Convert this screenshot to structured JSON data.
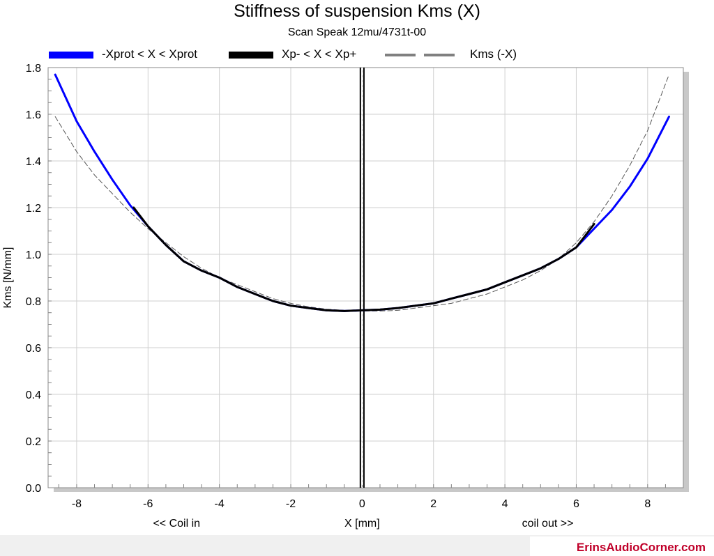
{
  "chart_data": {
    "type": "line",
    "title": "Stiffness of suspension Kms (X)",
    "subtitle": "Scan Speak 12mu/4731t-00",
    "xlabel": "X [mm]",
    "xlabel_left": "<< Coil in",
    "xlabel_right": "coil out >>",
    "ylabel": "Kms [N/mm]",
    "xlim": [
      -8.8,
      9.0
    ],
    "ylim": [
      0.0,
      1.8
    ],
    "xticks": [
      -8,
      -6,
      -4,
      -2,
      0,
      2,
      4,
      6,
      8
    ],
    "yticks": [
      0.0,
      0.2,
      0.4,
      0.6,
      0.8,
      1.0,
      1.2,
      1.4,
      1.6,
      1.8
    ],
    "grid": true,
    "legend_position": "top",
    "series": [
      {
        "name": "-Xprot < X < Xprot",
        "color": "#0000ff",
        "style": "solid",
        "x": [
          -8.6,
          -8.0,
          -7.5,
          -7.0,
          -6.5,
          -6.0,
          -5.5,
          -5.0,
          -4.5,
          -4.0,
          -3.5,
          -3.0,
          -2.5,
          -2.0,
          -1.5,
          -1.0,
          -0.5,
          0.0,
          0.5,
          1.0,
          1.5,
          2.0,
          2.5,
          3.0,
          3.5,
          4.0,
          4.5,
          5.0,
          5.5,
          6.0,
          6.5,
          7.0,
          7.5,
          8.0,
          8.6
        ],
        "y": [
          1.77,
          1.57,
          1.44,
          1.32,
          1.21,
          1.12,
          1.04,
          0.97,
          0.93,
          0.9,
          0.86,
          0.83,
          0.8,
          0.78,
          0.77,
          0.76,
          0.757,
          0.76,
          0.763,
          0.77,
          0.78,
          0.79,
          0.81,
          0.83,
          0.85,
          0.88,
          0.91,
          0.94,
          0.98,
          1.03,
          1.11,
          1.19,
          1.29,
          1.41,
          1.59
        ]
      },
      {
        "name": "Xp- < X < Xp+",
        "color": "#000000",
        "style": "solid",
        "x": [
          -6.4,
          -6.0,
          -5.5,
          -5.0,
          -4.5,
          -4.0,
          -3.5,
          -3.0,
          -2.5,
          -2.0,
          -1.5,
          -1.0,
          -0.5,
          0.0,
          0.5,
          1.0,
          1.5,
          2.0,
          2.5,
          3.0,
          3.5,
          4.0,
          4.5,
          5.0,
          5.5,
          6.0,
          6.5
        ],
        "y": [
          1.2,
          1.12,
          1.04,
          0.97,
          0.93,
          0.9,
          0.86,
          0.83,
          0.8,
          0.78,
          0.77,
          0.76,
          0.757,
          0.76,
          0.763,
          0.77,
          0.78,
          0.79,
          0.81,
          0.83,
          0.85,
          0.88,
          0.91,
          0.94,
          0.98,
          1.03,
          1.13
        ]
      },
      {
        "name": "Kms (-X)",
        "color": "#808080",
        "style": "dashed",
        "x": [
          -8.6,
          -8.0,
          -7.5,
          -7.0,
          -6.5,
          -6.0,
          -5.5,
          -5.0,
          -4.5,
          -4.0,
          -3.5,
          -3.0,
          -2.5,
          -2.0,
          -1.5,
          -1.0,
          -0.5,
          0.0,
          0.5,
          1.0,
          1.5,
          2.0,
          2.5,
          3.0,
          3.5,
          4.0,
          4.5,
          5.0,
          5.5,
          6.0,
          6.5,
          7.0,
          7.5,
          8.0,
          8.6
        ],
        "y": [
          1.59,
          1.44,
          1.34,
          1.26,
          1.18,
          1.11,
          1.05,
          0.99,
          0.94,
          0.9,
          0.87,
          0.84,
          0.81,
          0.79,
          0.775,
          0.765,
          0.76,
          0.757,
          0.757,
          0.76,
          0.77,
          0.78,
          0.79,
          0.81,
          0.83,
          0.86,
          0.89,
          0.93,
          0.98,
          1.05,
          1.14,
          1.25,
          1.38,
          1.53,
          1.77
        ]
      }
    ],
    "vertical_markers": [
      {
        "x": -0.05,
        "color": "#000000",
        "style": "solid"
      },
      {
        "x": 0.05,
        "color": "#000000",
        "style": "solid"
      },
      {
        "x": 0.0,
        "color": "#ffffff",
        "style": "dashed"
      }
    ]
  },
  "footer": {
    "brand": "ErinsAudioCorner.com",
    "brand_color": "#c0002a"
  }
}
